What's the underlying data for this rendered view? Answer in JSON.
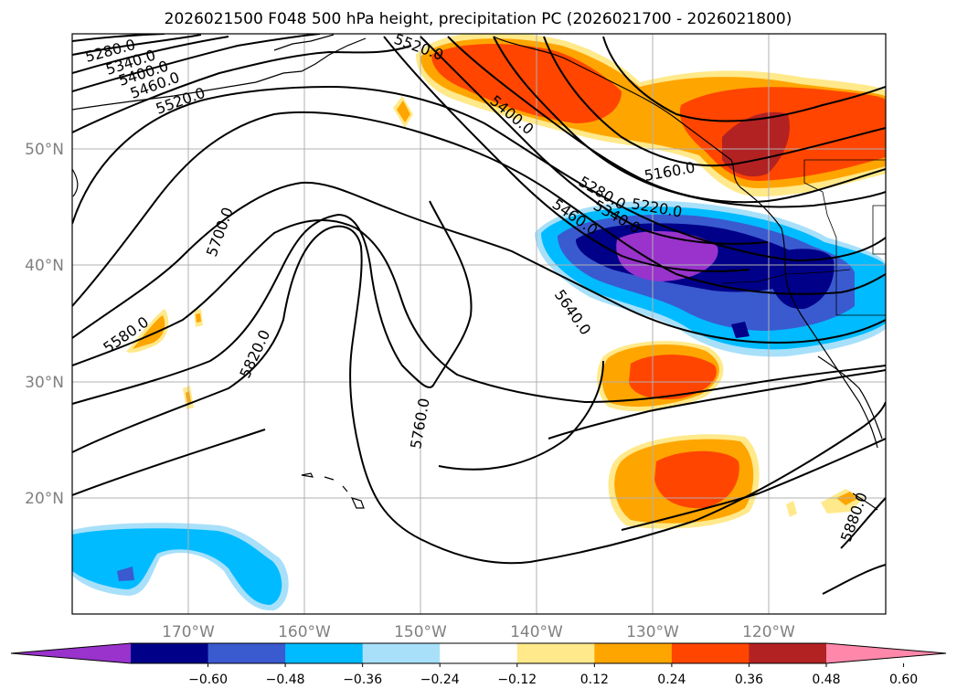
{
  "title": "2026021500 F048 500 hPa height, precipitation PC (2026021700 - 2026021800)",
  "map": {
    "lon_ticks": [
      "170°W",
      "160°W",
      "150°W",
      "140°W",
      "130°W",
      "120°W"
    ],
    "lat_ticks": [
      "50°N",
      "40°N",
      "30°N",
      "20°N"
    ],
    "grid": true,
    "contour_labels": [
      "5280.0",
      "5340.0",
      "5400.0",
      "5460.0",
      "5520.0",
      "5700.0",
      "5580.0",
      "5820.0",
      "5760.0",
      "5640.0",
      "5460.0",
      "5400.0",
      "5280.0",
      "5340.0",
      "5220.0",
      "5160.0",
      "5880.0",
      "5520.0"
    ]
  },
  "colorbar": {
    "tick_labels": [
      "−0.60",
      "−0.48",
      "−0.36",
      "−0.24",
      "−0.12",
      "0.12",
      "0.24",
      "0.36",
      "0.48",
      "0.60"
    ],
    "colors": [
      "#9933cc",
      "#000088",
      "#3a5ad0",
      "#00bbff",
      "#a8e0fa",
      "#ffffff",
      "#ffe98a",
      "#ffa500",
      "#ff4500",
      "#b22222",
      "#ff88aa"
    ]
  },
  "shading": {
    "negative_colors": [
      "#a8e0fa",
      "#00bbff",
      "#3a5ad0",
      "#000088",
      "#9933cc"
    ],
    "positive_colors": [
      "#ffe98a",
      "#ffa500",
      "#ff4500",
      "#b22222"
    ]
  }
}
